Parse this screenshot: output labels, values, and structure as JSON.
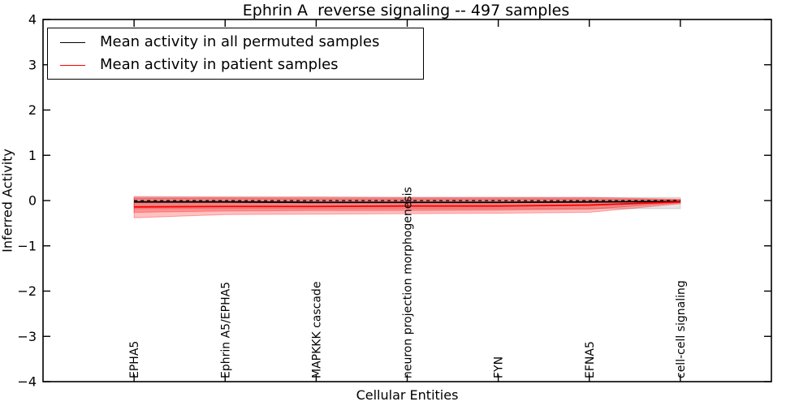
{
  "chart_data": {
    "type": "line",
    "title": "Ephrin A  reverse signaling -- 497 samples",
    "xlabel": "Cellular Entities",
    "ylabel": "Inferred Activity",
    "ylim": [
      -4,
      4
    ],
    "xlim": [
      0,
      8
    ],
    "yticks": [
      4,
      3,
      2,
      1,
      0,
      -1,
      -2,
      -3,
      -4
    ],
    "grid": false,
    "legend_position": "upper left",
    "categories": [
      "EPHA5",
      "Ephrin A5/EPHA5",
      "MAPKKK cascade",
      "neuron projection morphogenesis",
      "FYN",
      "EFNA5",
      "cell-cell signaling"
    ],
    "legend": [
      {
        "label": "Mean activity in all permuted samples",
        "color": "#000000"
      },
      {
        "label": "Mean activity in patient samples",
        "color": "#ff0000"
      }
    ],
    "bands": [
      {
        "name": "permuted-samples-std-band",
        "fill": "rgba(0,0,0,0.10)",
        "edge": "rgba(0,0,0,0.14)",
        "upper": [
          0.07,
          0.07,
          0.07,
          0.07,
          0.07,
          0.07,
          0.07
        ],
        "lower": [
          -0.18,
          -0.18,
          -0.18,
          -0.18,
          -0.18,
          -0.18,
          -0.18
        ]
      },
      {
        "name": "patient-samples-outer-band",
        "fill": "rgba(255,0,0,0.24)",
        "edge": "rgba(255,0,0,0.32)",
        "upper": [
          0.09,
          0.08,
          0.08,
          0.07,
          0.07,
          0.07,
          0.03
        ],
        "lower": [
          -0.38,
          -0.31,
          -0.3,
          -0.29,
          -0.28,
          -0.26,
          -0.07
        ]
      },
      {
        "name": "patient-samples-inner-band",
        "fill": "rgba(255,0,0,0.24)",
        "edge": "rgba(255,0,0,0.32)",
        "upper": [
          0.05,
          0.05,
          0.04,
          0.04,
          0.04,
          0.04,
          0.02
        ],
        "lower": [
          -0.26,
          -0.23,
          -0.22,
          -0.22,
          -0.21,
          -0.19,
          -0.05
        ]
      }
    ],
    "series": [
      {
        "name": "Mean activity in all permuted samples",
        "color": "#000000",
        "style": "solid",
        "width": 1.8,
        "values": [
          -0.03,
          -0.03,
          -0.04,
          -0.04,
          -0.04,
          -0.03,
          -0.02
        ]
      },
      {
        "name": "Mean activity in patient samples",
        "color": "#ff0000",
        "style": "solid",
        "width": 1.8,
        "values": [
          -0.14,
          -0.13,
          -0.13,
          -0.12,
          -0.12,
          -0.1,
          -0.03
        ]
      },
      {
        "name": "zero-reference-line",
        "color": "#000000",
        "style": "dashed",
        "width": 1.3,
        "values": [
          0,
          0,
          0,
          0,
          0,
          0,
          0
        ]
      }
    ]
  }
}
